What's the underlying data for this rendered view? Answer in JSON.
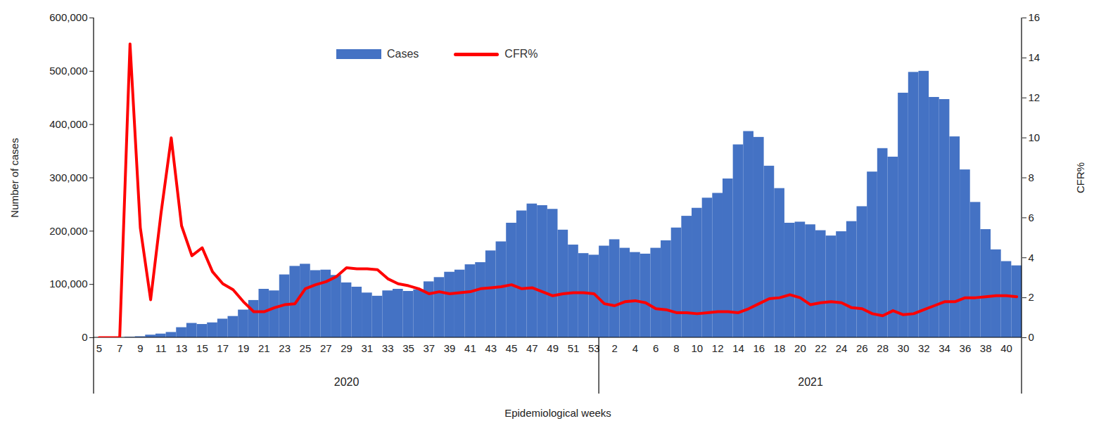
{
  "chart_data": {
    "type": "bar",
    "x_label": "Epidemiological weeks",
    "y_label": "Number of cases",
    "y2_label": "CFR%",
    "categories": [
      "5",
      null,
      "7",
      null,
      "9",
      null,
      "11",
      null,
      "13",
      null,
      "15",
      null,
      "17",
      null,
      "19",
      null,
      "21",
      null,
      "23",
      null,
      "25",
      null,
      "27",
      null,
      "29",
      null,
      "31",
      null,
      "33",
      null,
      "35",
      null,
      "37",
      null,
      "39",
      null,
      "41",
      null,
      "43",
      null,
      "45",
      null,
      "47",
      null,
      "49",
      null,
      "51",
      null,
      "53",
      null,
      "2",
      null,
      "4",
      null,
      "6",
      null,
      "8",
      null,
      "10",
      null,
      "12",
      null,
      "14",
      null,
      "16",
      null,
      "18",
      null,
      "20",
      null,
      "22",
      null,
      "24",
      null,
      "26",
      null,
      "28",
      null,
      "30",
      null,
      "32",
      null,
      "34",
      null,
      "36",
      null,
      "38",
      null,
      "40",
      null
    ],
    "groups": [
      {
        "label": "2020",
        "count": 49
      },
      {
        "label": "2021",
        "count": 41
      }
    ],
    "series": [
      {
        "name": "Cases",
        "type": "bar",
        "color": "#4472c4",
        "values": [
          0,
          0,
          0,
          1000,
          2000,
          5000,
          7000,
          10000,
          19000,
          27000,
          25000,
          28000,
          35000,
          40000,
          52000,
          70000,
          91000,
          88000,
          118000,
          134000,
          138000,
          126000,
          127000,
          117000,
          103000,
          95000,
          84000,
          78000,
          88000,
          91000,
          87000,
          90000,
          105000,
          113000,
          123000,
          127000,
          137000,
          141000,
          163000,
          180000,
          215000,
          238000,
          251000,
          248000,
          241000,
          202000,
          174000,
          158000,
          155000,
          172000,
          184000,
          168000,
          160000,
          157000,
          168000,
          182000,
          206000,
          228000,
          243000,
          262000,
          271000,
          298000,
          362000,
          387000,
          376000,
          322000,
          280000,
          215000,
          217000,
          212000,
          201000,
          191000,
          199000,
          218000,
          246000,
          311000,
          355000,
          339000,
          459000,
          498000,
          500000,
          451000,
          447000,
          377000,
          315000,
          254000,
          203000,
          165000,
          143000,
          135000
        ]
      },
      {
        "name": "CFR%",
        "type": "line",
        "axis": "y2",
        "color": "#ff0000",
        "values": [
          0,
          0,
          0,
          14.7,
          5.5,
          1.9,
          6.2,
          10.0,
          5.6,
          4.1,
          4.5,
          3.3,
          2.7,
          2.4,
          1.8,
          1.3,
          1.3,
          1.5,
          1.65,
          1.7,
          2.45,
          2.65,
          2.8,
          3.05,
          3.5,
          3.45,
          3.45,
          3.4,
          2.95,
          2.7,
          2.6,
          2.45,
          2.2,
          2.3,
          2.2,
          2.25,
          2.3,
          2.45,
          2.5,
          2.55,
          2.65,
          2.45,
          2.5,
          2.3,
          2.1,
          2.2,
          2.25,
          2.25,
          2.2,
          1.7,
          1.6,
          1.8,
          1.85,
          1.75,
          1.45,
          1.4,
          1.25,
          1.25,
          1.2,
          1.25,
          1.3,
          1.3,
          1.25,
          1.45,
          1.7,
          1.95,
          2.0,
          2.15,
          2.0,
          1.65,
          1.75,
          1.8,
          1.75,
          1.5,
          1.45,
          1.2,
          1.1,
          1.35,
          1.15,
          1.2,
          1.4,
          1.6,
          1.8,
          1.8,
          2.0,
          2.0,
          2.05,
          2.1,
          2.1,
          2.05
        ]
      }
    ],
    "ylim": [
      0,
      600000
    ],
    "yticks": [
      0,
      {
        "value": 100000,
        "label": "100,000"
      },
      {
        "value": 200000,
        "label": "200,000"
      },
      {
        "value": 300000,
        "label": "300,000"
      },
      {
        "value": 400000,
        "label": "400,000"
      },
      {
        "value": 500000,
        "label": "500,000"
      },
      {
        "value": 600000,
        "label": "600,000"
      }
    ],
    "y2lim": [
      0,
      16
    ],
    "y2ticks": [
      0,
      2,
      4,
      6,
      8,
      10,
      12,
      14,
      16
    ],
    "grid": false,
    "legend": "top"
  }
}
